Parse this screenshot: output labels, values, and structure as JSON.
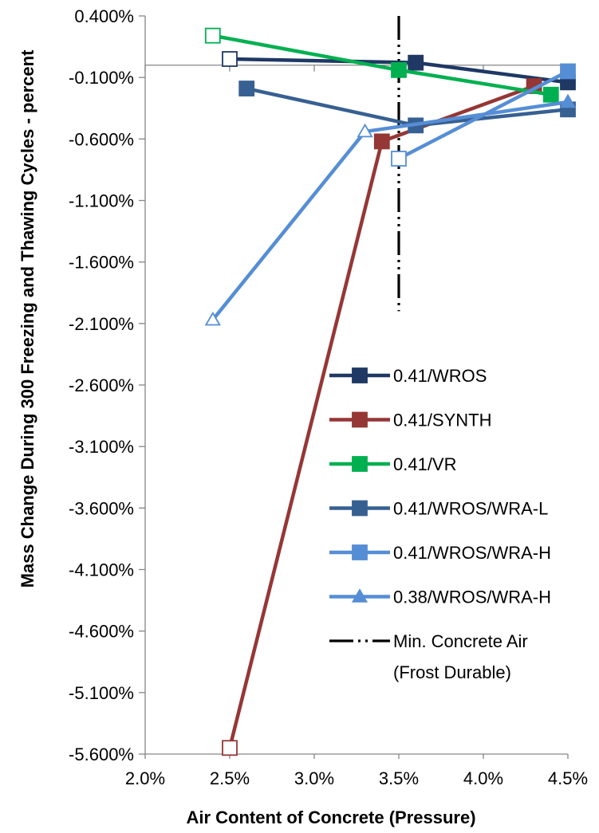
{
  "chart_data": {
    "type": "line",
    "xlabel": "Air Content of Concrete (Pressure)",
    "ylabel": "Mass Change During 300 Freezing and Thawing Cycles - percent",
    "xlim": [
      2.0,
      4.5
    ],
    "ylim": [
      -5.6,
      0.4
    ],
    "x_ticks": [
      {
        "value": 2.0,
        "label": "2.0%"
      },
      {
        "value": 2.5,
        "label": "2.5%"
      },
      {
        "value": 3.0,
        "label": "3.0%"
      },
      {
        "value": 3.5,
        "label": "3.5%"
      },
      {
        "value": 4.0,
        "label": "4.0%"
      },
      {
        "value": 4.5,
        "label": "4.5%"
      }
    ],
    "y_ticks": [
      {
        "value": 0.4,
        "label": "0.400%"
      },
      {
        "value": -0.1,
        "label": "-0.100%"
      },
      {
        "value": -0.6,
        "label": "-0.600%"
      },
      {
        "value": -1.1,
        "label": "-1.100%"
      },
      {
        "value": -1.6,
        "label": "-1.600%"
      },
      {
        "value": -2.1,
        "label": "-2.100%"
      },
      {
        "value": -2.6,
        "label": "-2.600%"
      },
      {
        "value": -3.1,
        "label": "-3.100%"
      },
      {
        "value": -3.6,
        "label": "-3.600%"
      },
      {
        "value": -4.1,
        "label": "-4.100%"
      },
      {
        "value": -4.6,
        "label": "-4.600%"
      },
      {
        "value": -5.1,
        "label": "-5.100%"
      },
      {
        "value": -5.6,
        "label": "-5.600%"
      }
    ],
    "zero_line": 0,
    "legend_position": "right",
    "series": [
      {
        "name": "0.41/WROS",
        "color": "#1f3864",
        "marker": "square",
        "points": [
          {
            "x": 2.5,
            "y": 0.05,
            "open": true
          },
          {
            "x": 3.6,
            "y": 0.02
          },
          {
            "x": 4.5,
            "y": -0.14
          }
        ]
      },
      {
        "name": "0.41/SYNTH",
        "color": "#953735",
        "marker": "square",
        "points": [
          {
            "x": 2.5,
            "y": -5.55,
            "open": true
          },
          {
            "x": 3.4,
            "y": -0.62
          },
          {
            "x": 4.3,
            "y": -0.17
          }
        ]
      },
      {
        "name": "0.41/VR",
        "color": "#00b050",
        "marker": "square",
        "points": [
          {
            "x": 2.4,
            "y": 0.24,
            "open": true
          },
          {
            "x": 3.5,
            "y": -0.04
          },
          {
            "x": 4.4,
            "y": -0.24
          }
        ]
      },
      {
        "name": "0.41/WROS/WRA-L",
        "color": "#376092",
        "marker": "square",
        "points": [
          {
            "x": 2.6,
            "y": -0.19
          },
          {
            "x": 3.6,
            "y": -0.49
          },
          {
            "x": 4.5,
            "y": -0.36
          }
        ]
      },
      {
        "name": "0.41/WROS/WRA-H",
        "color": "#558ed5",
        "marker": "square",
        "points": [
          {
            "x": 3.5,
            "y": -0.76,
            "open": true
          },
          {
            "x": 4.5,
            "y": -0.05
          }
        ]
      },
      {
        "name": "0.38/WROS/WRA-H",
        "color": "#558ed5",
        "marker": "triangle",
        "points": [
          {
            "x": 2.4,
            "y": -2.07,
            "open": true
          },
          {
            "x": 3.3,
            "y": -0.54,
            "open": true
          },
          {
            "x": 4.5,
            "y": -0.3
          }
        ]
      }
    ],
    "reference_line": {
      "name": "Min. Concrete Air",
      "name_line2": "(Frost Durable)",
      "x": 3.5,
      "y_from": 0.4,
      "y_to": -2.0,
      "style": "long-dash-dot-dot",
      "color": "#000000"
    }
  }
}
